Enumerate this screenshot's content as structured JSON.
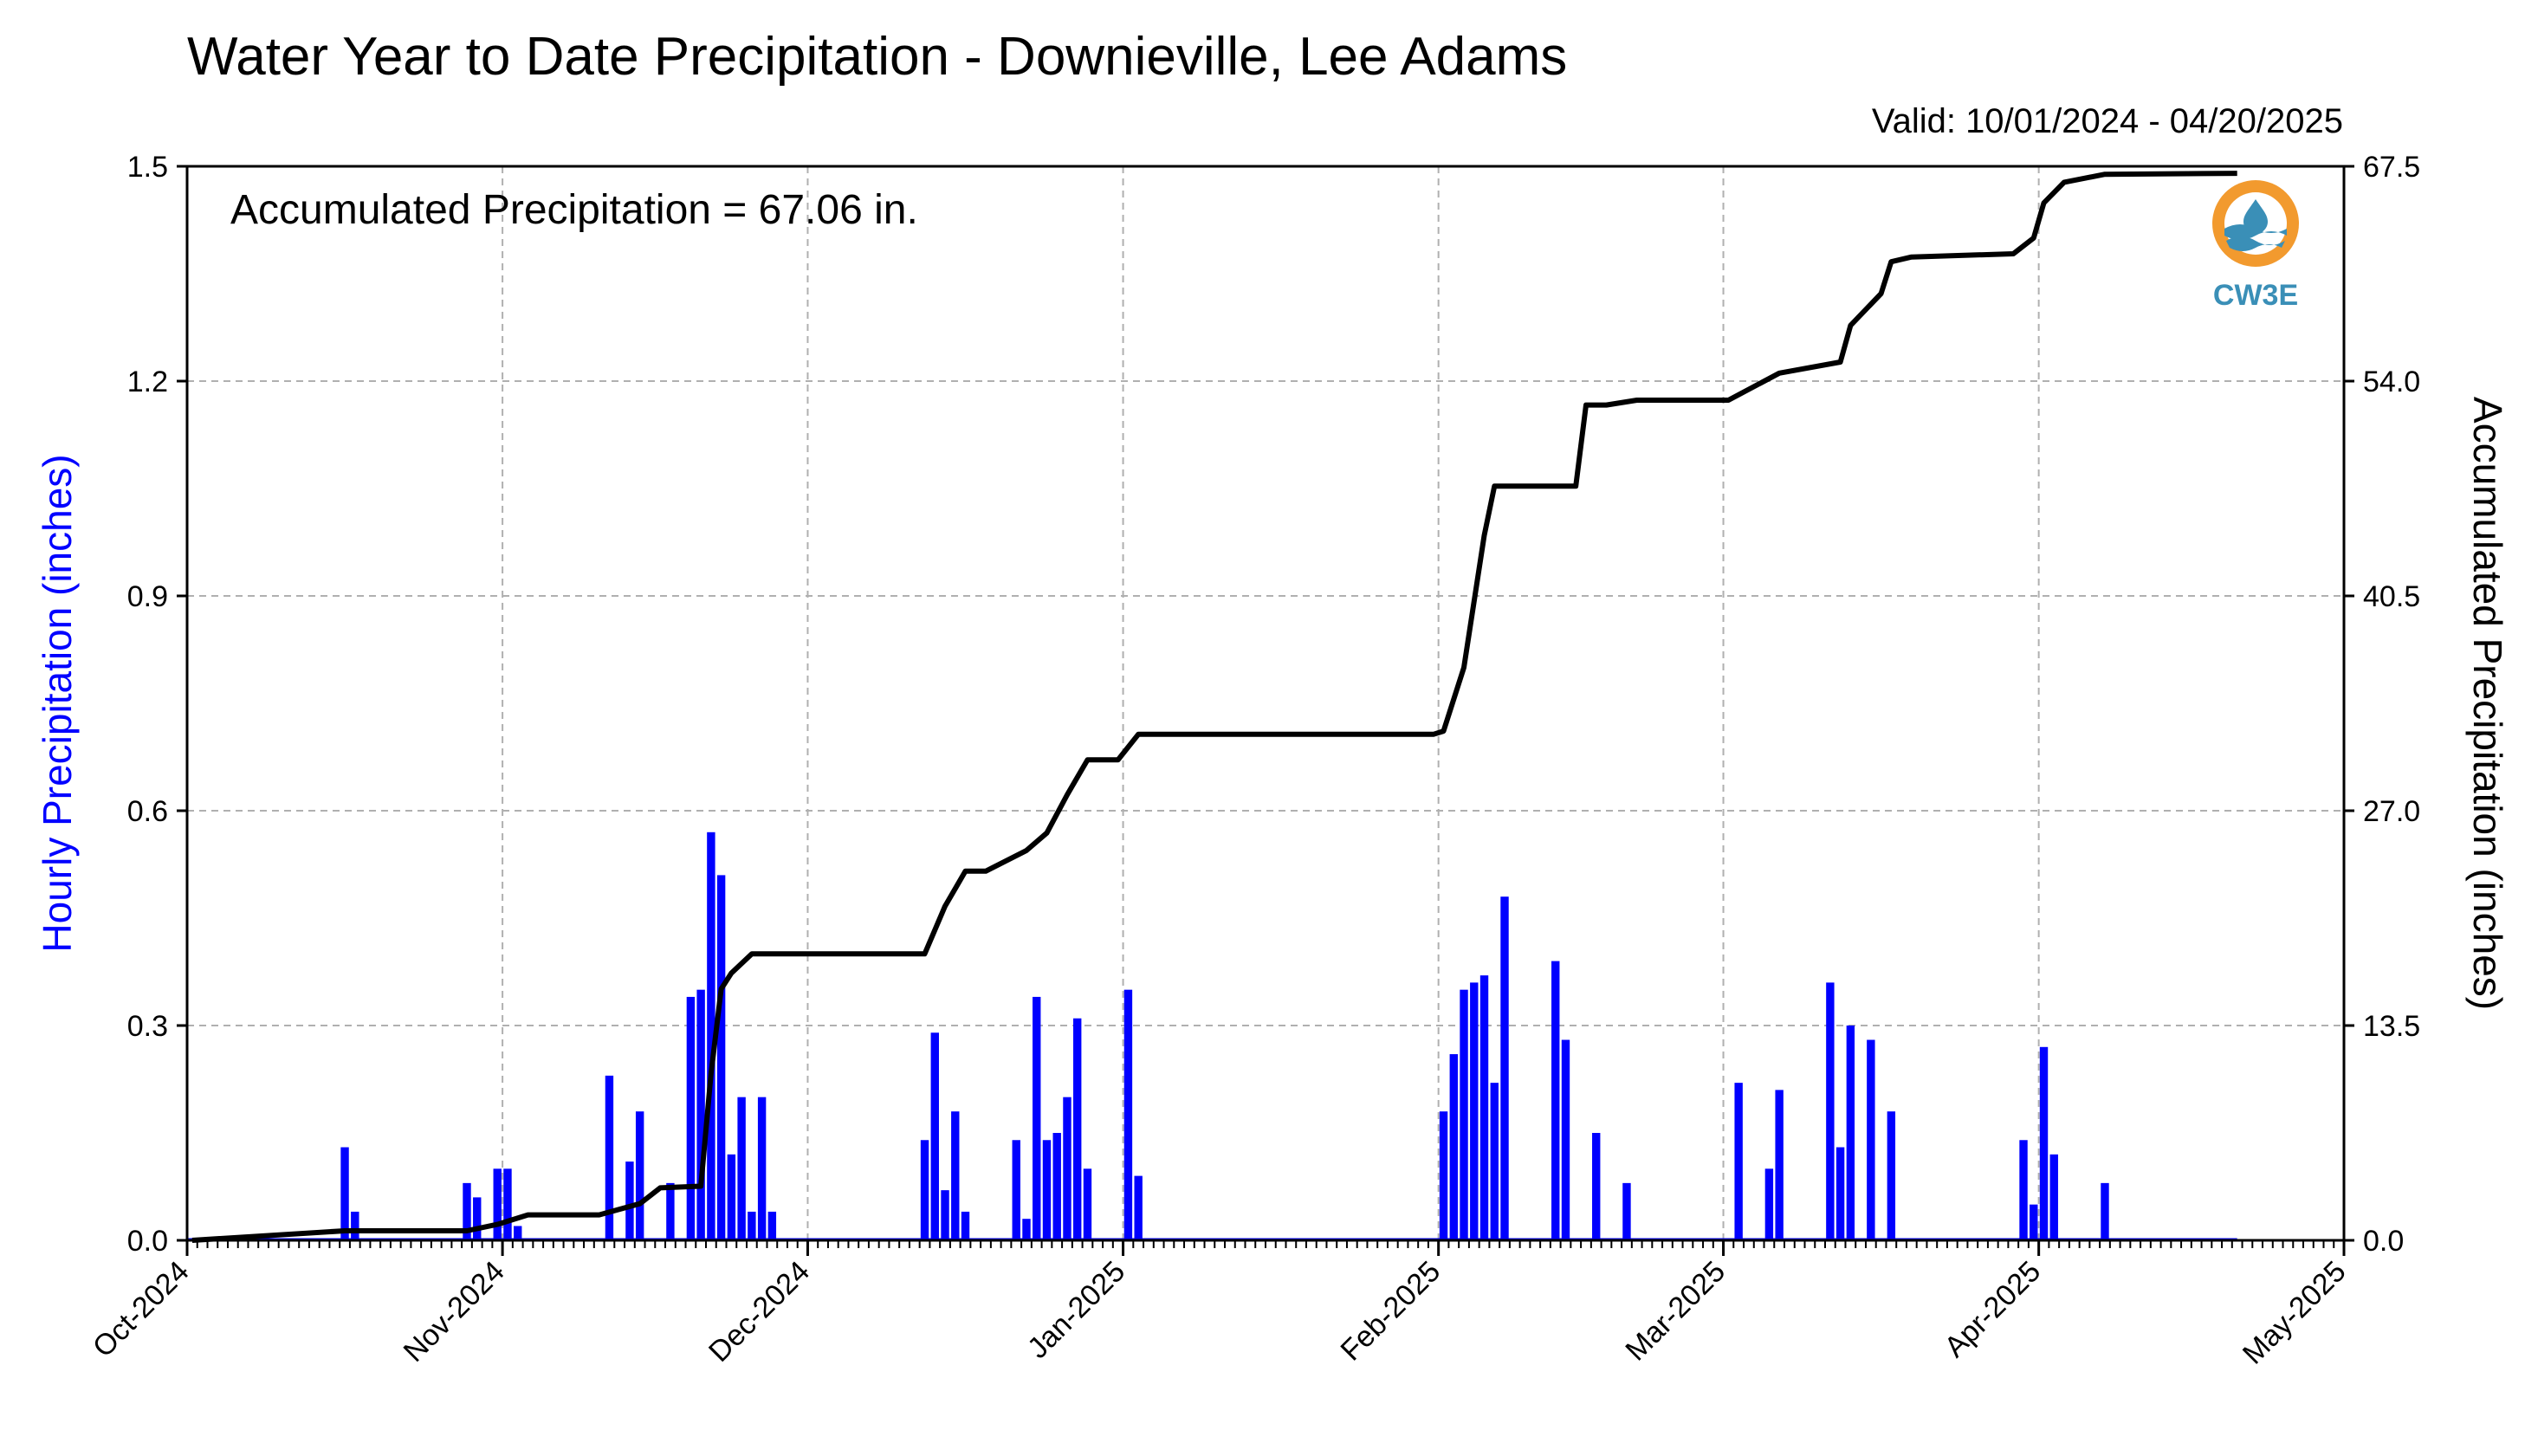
{
  "title": "Water Year to Date Precipitation - Downieville, Lee Adams",
  "valid": "Valid: 10/01/2024 - 04/20/2025",
  "logo_text": "CW3E",
  "chart_data": {
    "type": "bar",
    "annotation": "Accumulated Precipitation = 67.06 in.",
    "x_tick_labels": [
      "Oct-2024",
      "Nov-2024",
      "Dec-2024",
      "Jan-2025",
      "Feb-2025",
      "Mar-2025",
      "Apr-2025",
      "May-2025"
    ],
    "xlim": [
      "2024-10-01",
      "2025-05-01"
    ],
    "y_left": {
      "label": "Hourly Precipitation (inches)",
      "ylim": [
        0,
        1.5
      ],
      "ticks": [
        "0.0",
        "0.3",
        "0.6",
        "0.9",
        "1.2",
        "1.5"
      ],
      "color": "#0000ff"
    },
    "y_right": {
      "label": "Accumulated Precipitation (inches)",
      "ylim": [
        0,
        67.5
      ],
      "ticks": [
        "0.0",
        "13.5",
        "27.0",
        "40.5",
        "54.0",
        "67.5"
      ],
      "color": "#000000"
    },
    "grid": true,
    "series": [
      {
        "type": "bar",
        "axis": "left",
        "color": "#0000ff",
        "x": [
          "2024-10-16",
          "2024-10-17",
          "2024-10-28",
          "2024-10-29",
          "2024-10-31",
          "2024-11-01",
          "2024-11-02",
          "2024-11-11",
          "2024-11-13",
          "2024-11-14",
          "2024-11-17",
          "2024-11-19",
          "2024-11-20",
          "2024-11-21",
          "2024-11-22",
          "2024-11-23",
          "2024-11-24",
          "2024-11-25",
          "2024-11-26",
          "2024-11-27",
          "2024-12-12",
          "2024-12-13",
          "2024-12-14",
          "2024-12-15",
          "2024-12-16",
          "2024-12-21",
          "2024-12-22",
          "2024-12-23",
          "2024-12-24",
          "2024-12-25",
          "2024-12-26",
          "2024-12-27",
          "2024-12-28",
          "2025-01-01",
          "2025-01-02",
          "2025-02-01",
          "2025-02-02",
          "2025-02-03",
          "2025-02-04",
          "2025-02-05",
          "2025-02-06",
          "2025-02-07",
          "2025-02-12",
          "2025-02-13",
          "2025-02-16",
          "2025-02-19",
          "2025-03-02",
          "2025-03-05",
          "2025-03-06",
          "2025-03-11",
          "2025-03-12",
          "2025-03-13",
          "2025-03-15",
          "2025-03-17",
          "2025-03-30",
          "2025-03-31",
          "2025-04-01",
          "2025-04-02",
          "2025-04-07"
        ],
        "values": [
          0.13,
          0.04,
          0.08,
          0.06,
          0.1,
          0.1,
          0.02,
          0.23,
          0.11,
          0.18,
          0.08,
          0.34,
          0.35,
          0.57,
          0.51,
          0.12,
          0.2,
          0.04,
          0.2,
          0.04,
          0.14,
          0.29,
          0.07,
          0.18,
          0.04,
          0.14,
          0.03,
          0.34,
          0.14,
          0.15,
          0.2,
          0.31,
          0.1,
          0.35,
          0.09,
          0.18,
          0.26,
          0.35,
          0.36,
          0.37,
          0.22,
          0.48,
          0.39,
          0.28,
          0.15,
          0.08,
          0.22,
          0.1,
          0.21,
          0.36,
          0.13,
          0.3,
          0.28,
          0.18,
          0.14,
          0.05,
          0.27,
          0.12,
          0.08
        ]
      },
      {
        "type": "line",
        "axis": "right",
        "color": "#000000",
        "x": [
          "2024-10-01",
          "2024-10-16",
          "2024-10-28",
          "2024-10-31",
          "2024-11-03",
          "2024-11-10",
          "2024-11-14",
          "2024-11-16",
          "2024-11-20",
          "2024-11-21",
          "2024-11-22",
          "2024-11-23",
          "2024-11-25",
          "2024-11-26",
          "2024-12-12",
          "2024-12-14",
          "2024-12-16",
          "2024-12-18",
          "2024-12-22",
          "2024-12-24",
          "2024-12-26",
          "2024-12-28",
          "2024-12-31",
          "2025-01-02",
          "2025-01-31",
          "2025-02-01",
          "2025-02-03",
          "2025-02-05",
          "2025-02-06",
          "2025-02-08",
          "2025-02-14",
          "2025-02-15",
          "2025-02-17",
          "2025-02-20",
          "2025-03-01",
          "2025-03-06",
          "2025-03-12",
          "2025-03-13",
          "2025-03-16",
          "2025-03-17",
          "2025-03-19",
          "2025-03-29",
          "2025-03-31",
          "2025-04-01",
          "2025-04-03",
          "2025-04-07",
          "2025-04-20"
        ],
        "values": [
          0,
          0.6,
          0.6,
          1.0,
          1.6,
          1.6,
          2.3,
          3.3,
          3.4,
          10.5,
          15.8,
          16.8,
          18.0,
          18.0,
          18.0,
          21.0,
          23.2,
          23.2,
          24.5,
          25.6,
          28.0,
          30.2,
          30.2,
          31.8,
          31.8,
          32.0,
          36.0,
          44.3,
          47.4,
          47.4,
          47.4,
          52.5,
          52.5,
          52.8,
          52.8,
          54.5,
          55.2,
          57.5,
          59.5,
          61.5,
          61.8,
          62.0,
          63.0,
          65.2,
          66.5,
          67.0,
          67.06
        ]
      }
    ]
  }
}
